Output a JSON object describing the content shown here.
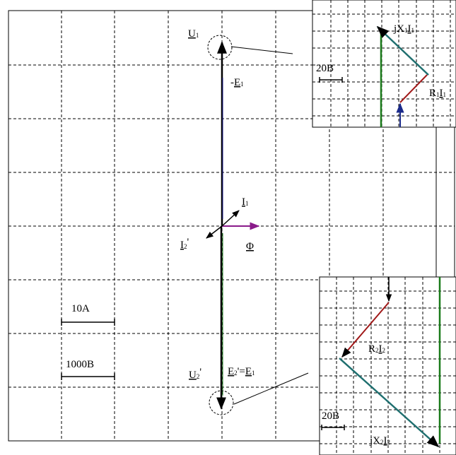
{
  "main_diagram": {
    "labels": {
      "u1": {
        "base": "U",
        "sub": "1"
      },
      "e1_neg": {
        "prefix": "-",
        "base": "E",
        "sub": "1"
      },
      "i1": {
        "base": "I",
        "sub": "1"
      },
      "i2p": {
        "base": "I",
        "sub": "2",
        "suffix": "'"
      },
      "phi": {
        "base": "Φ"
      },
      "u2p": {
        "base": "U",
        "sub": "2",
        "suffix": "'"
      },
      "e2p": {
        "base": "E",
        "sub": "2",
        "suffix": "'=",
        "base2": "E",
        "sub2": "1"
      }
    },
    "scales": {
      "current": "10A",
      "voltage": "1000B"
    }
  },
  "inset_top": {
    "labels": {
      "jx1i1": {
        "prefix": "j",
        "base": "X",
        "sub": "1",
        "base2": "I",
        "sub2": "1"
      },
      "r1i1": {
        "base": "R",
        "sub": "1",
        "base2": "I",
        "sub2": "1"
      }
    },
    "scale": "20B"
  },
  "inset_bottom": {
    "labels": {
      "r2i2": {
        "base": "R",
        "sub": "2",
        "base2": "I",
        "sub2": "2"
      },
      "jx2i2": {
        "prefix": "j",
        "base": "X",
        "sub": "2",
        "base2": "I",
        "sub2": "2"
      }
    },
    "scale": "20B"
  },
  "colors": {
    "grid": "#000000",
    "voltage_vector": "#000000",
    "flux_vector": "#8a1a8a",
    "e_vector": "#1a1a8a",
    "green_vector": "#1a7a1a",
    "red_vector": "#a01818",
    "teal_vector": "#1f6f6f",
    "blue_vector": "#1a2a8a"
  }
}
